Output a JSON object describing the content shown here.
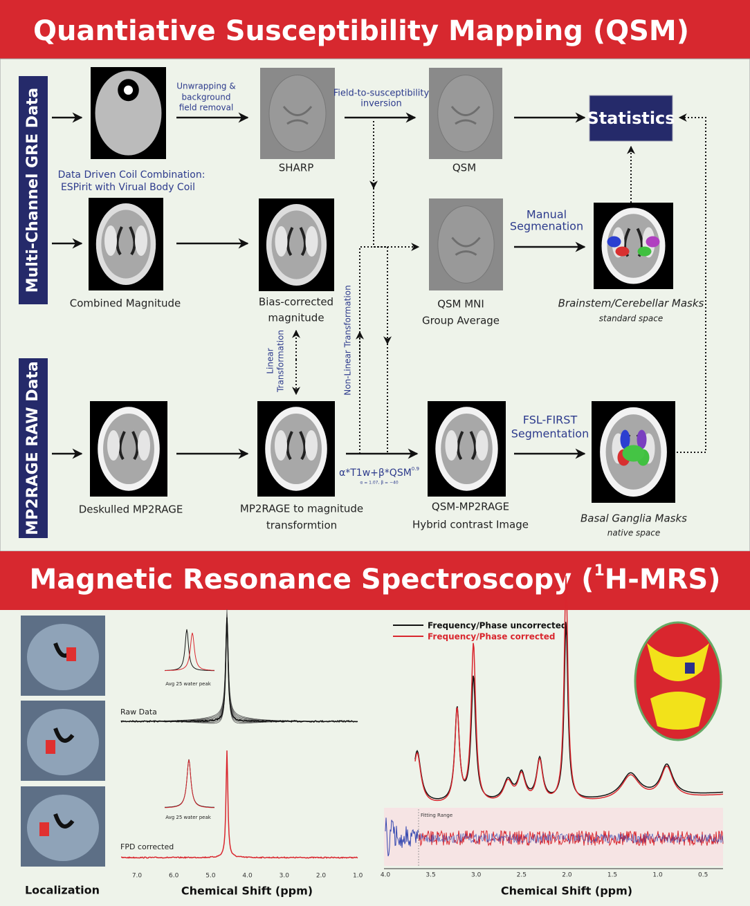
{
  "qsm": {
    "title": "Quantiative Susceptibility Mapping (QSM)",
    "side_labels": [
      "Multi-Channel GRE Data",
      "MP2RAGE RAW Data"
    ],
    "statistics": "Statistics",
    "arrow_labels": {
      "unwrapping": [
        "Unwrapping &",
        "background",
        "field removal"
      ],
      "inversion": [
        "Field-to-susceptibility",
        "inversion"
      ],
      "coil": [
        "Data Driven Coil Combination:",
        "ESPirit with Virual Body Coil"
      ],
      "manual": [
        "Manual",
        "Segmenation"
      ],
      "linear": [
        "Linear",
        "Transformation"
      ],
      "nonlinear": "Non-Linear Transformation",
      "fsl": [
        "FSL-FIRST",
        "Segmentation"
      ],
      "formula": "α*T1w+β*QSM",
      "formula_sup": "0.9",
      "formula_sub": "α = 1.07, β = −40"
    },
    "images": {
      "sharp": "SHARP",
      "qsm": "QSM",
      "combined": "Combined Magnitude",
      "bias": [
        "Bias-corrected",
        "magnitude"
      ],
      "mni": [
        "QSM MNI",
        "Group Average"
      ],
      "brainstem": [
        "Brainstem/Cerebellar  Masks",
        "standard space"
      ],
      "deskulled": "Deskulled MP2RAGE",
      "mp2mag": [
        "MP2RAGE to magnitude",
        "transformtion"
      ],
      "hybrid": [
        "QSM-MP2RAGE",
        "Hybrid contrast Image"
      ],
      "basal": [
        "Basal Ganglia Masks",
        "native space"
      ]
    }
  },
  "mrs": {
    "title_parts": [
      "Magnetic Resonance Spectroscopy (",
      "1",
      "H-MRS)"
    ],
    "localization": "Localization",
    "left_plot": {
      "inset_labels": [
        "Avg 25 water peak",
        "Avg 25 water peak"
      ],
      "traces": [
        "Raw Data",
        "FPD corrected"
      ],
      "xticks": [
        "7.0",
        "6.0",
        "5.0",
        "4.0",
        "3.0",
        "2.0",
        "1.0"
      ],
      "xlabel": "Chemical Shift (ppm)"
    },
    "right_plot": {
      "legend": [
        "Frequency/Phase uncorrected",
        "Frequency/Phase corrected"
      ],
      "fitting": "Fitting Range",
      "xticks": [
        "4.0",
        "3.5",
        "3.0",
        "2.5",
        "2.0",
        "1.5",
        "1.0",
        "0.5"
      ],
      "xlabel": "Chemical Shift (ppm)"
    }
  }
}
